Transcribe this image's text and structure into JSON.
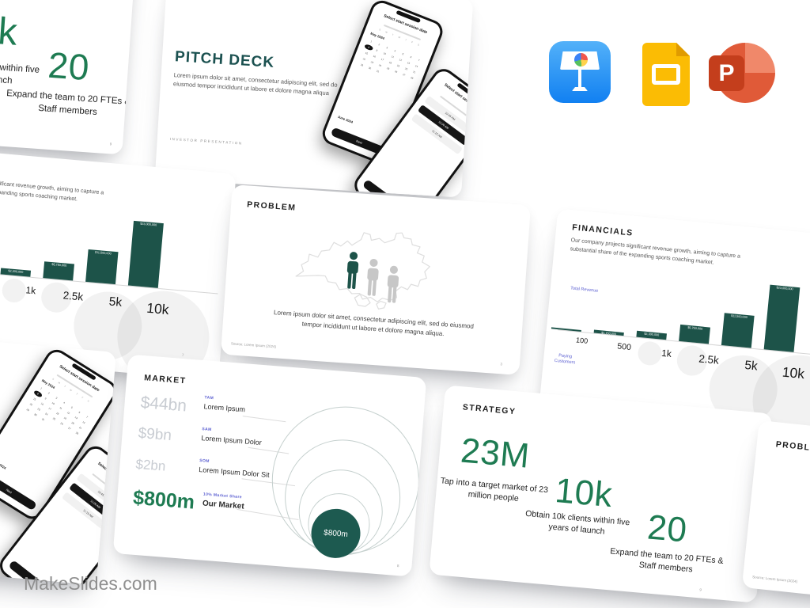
{
  "brand": {
    "watermark": "MakeSlides.com"
  },
  "app_icons": {
    "keynote": {
      "name": "Apple Keynote"
    },
    "google_slides": {
      "name": "Google Slides"
    },
    "powerpoint": {
      "name": "Microsoft PowerPoint",
      "letter": "P"
    }
  },
  "colors": {
    "teal_dark": "#1d5349",
    "green_stat": "#1e7b52",
    "indigo_label": "#5b5fd1",
    "title_teal": "#1b5150",
    "gray_value": "#c8ccd2"
  },
  "pitch_deck": {
    "title": "PITCH DECK",
    "body": "Lorem ipsum dolor sit amet, consectetur adipiscing elit, sed do eiusmod tempor incididunt ut labore et dolore magna aliqua",
    "footer": "INVESTOR  PRESENTATION",
    "date_phone": {
      "header": "Select start session date",
      "weekdays": "S M T W T F S",
      "month": "May 2024",
      "next_month": "June 2024",
      "days_in_month": 31,
      "selected_day": 8,
      "button": "Next"
    },
    "time_phone": {
      "header": "Select start session time",
      "times": [
        "10:45 AM",
        "11:00 AM",
        "11:15 AM"
      ],
      "button": "Next"
    }
  },
  "problem": {
    "title": "PROBLEM",
    "body": "Lorem ipsum dolor sit amet, consectetur adipiscing elit, sed do eiusmod tempor incididunt ut labore et dolore magna aliqua.",
    "source": "Source: Lorem Ipsum (2024)",
    "page": "3"
  },
  "financials": {
    "title": "FINANCIALS",
    "description": "Our company projects significant revenue growth, aiming to capture a substantial share of the expanding sports coaching market.",
    "y_axis_label": "Total Revenue",
    "x_axis_label": "Paying Customers",
    "page": "7"
  },
  "market": {
    "title": "MARKET",
    "page": "8",
    "rows": [
      {
        "value": "$44bn",
        "tag": "TAM",
        "name": "Lorem Ipsum"
      },
      {
        "value": "$9bn",
        "tag": "SAM",
        "name": "Lorem Ipsum Dolor"
      },
      {
        "value": "$2bn",
        "tag": "SOM",
        "name": "Lorem Ipsum Dolor Sit"
      },
      {
        "value": "$800m",
        "tag": "10% Market Share",
        "name": "Our Market"
      }
    ],
    "bubble_label": "$800m"
  },
  "strategy": {
    "title": "STRATEGY",
    "page": "9",
    "stats": [
      {
        "value": "23M",
        "caption": "Tap into a target market of 23 million people"
      },
      {
        "value": "10k",
        "caption": "Obtain 10k clients within five years of launch"
      },
      {
        "value": "20",
        "caption": "Expand the team to 20 FTEs & Staff members"
      }
    ]
  },
  "chart_data": [
    {
      "type": "bar",
      "title": "FINANCIALS",
      "xlabel": "Paying Customers",
      "ylabel": "Total Revenue",
      "categories": [
        "100",
        "500",
        "1k",
        "2.5k",
        "5k",
        "10k"
      ],
      "values": [
        230000,
        1150000,
        2300000,
        5750000,
        11500000,
        23000000
      ],
      "value_labels": [
        "",
        "$1,150,000",
        "$2,300,000",
        "$5,750,000",
        "$11,500,000",
        "$23,000,000"
      ],
      "bar_color": "#1d5349",
      "ylim": [
        0,
        23000000
      ],
      "grid": false,
      "note": "same chart shown on two overlapping slides"
    },
    {
      "type": "concentric-circles",
      "title": "MARKET",
      "rings": [
        {
          "label": "TAM",
          "value": "$44bn"
        },
        {
          "label": "SAM",
          "value": "$9bn"
        },
        {
          "label": "SOM",
          "value": "$2bn"
        },
        {
          "label": "10% Market Share",
          "value": "$800m"
        }
      ]
    }
  ]
}
